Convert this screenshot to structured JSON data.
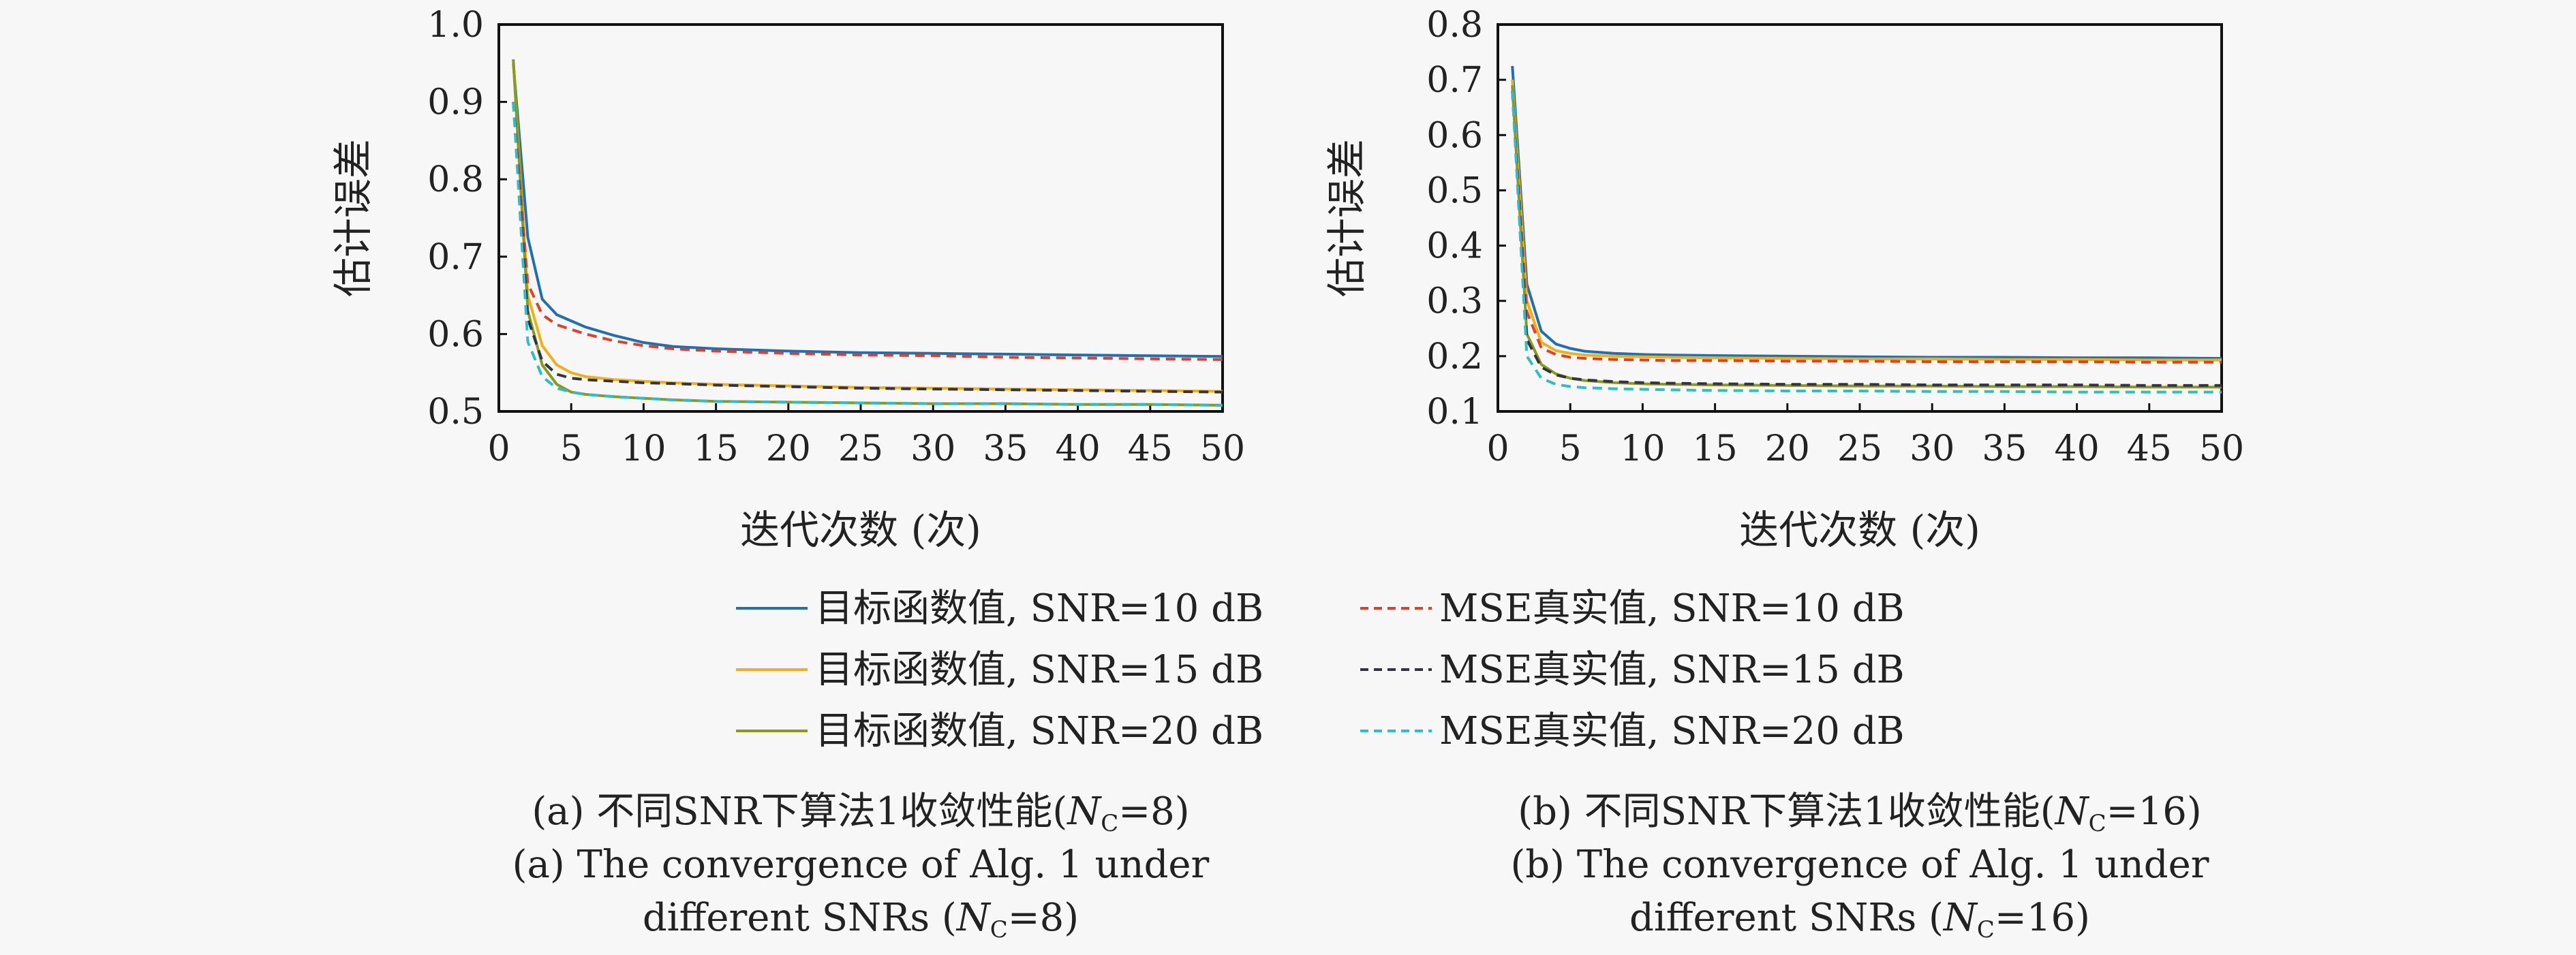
{
  "chart_data": [
    {
      "type": "line",
      "panel": "a",
      "xlabel": "迭代次数 (次)",
      "ylabel": "估计误差",
      "xlim": [
        0,
        50
      ],
      "ylim": [
        0.5,
        1.0
      ],
      "xticks": [
        0,
        5,
        10,
        15,
        20,
        25,
        30,
        35,
        40,
        45,
        50
      ],
      "yticks": [
        "0.5",
        "0.6",
        "0.7",
        "0.8",
        "0.9",
        "1.0"
      ],
      "grid": false,
      "x": [
        1,
        2,
        3,
        4,
        5,
        6,
        8,
        10,
        12,
        15,
        20,
        25,
        30,
        35,
        40,
        45,
        50
      ],
      "series": [
        {
          "name": "目标函数值, SNR=10 dB",
          "color": "#1f6fb4",
          "dash": "solid",
          "values": [
            0.95,
            0.725,
            0.645,
            0.625,
            0.617,
            0.609,
            0.598,
            0.589,
            0.584,
            0.581,
            0.578,
            0.576,
            0.575,
            0.574,
            0.573,
            0.572,
            0.571
          ]
        },
        {
          "name": "目标函数值, SNR=15 dB",
          "color": "#f2b017",
          "dash": "solid",
          "values": [
            0.955,
            0.65,
            0.585,
            0.56,
            0.55,
            0.545,
            0.541,
            0.539,
            0.537,
            0.535,
            0.533,
            0.531,
            0.53,
            0.529,
            0.528,
            0.527,
            0.526
          ]
        },
        {
          "name": "目标函数值, SNR=20 dB",
          "color": "#8a9a1b",
          "dash": "solid",
          "values": [
            0.955,
            0.63,
            0.56,
            0.535,
            0.525,
            0.522,
            0.519,
            0.517,
            0.515,
            0.513,
            0.512,
            0.511,
            0.51,
            0.51,
            0.509,
            0.509,
            0.508
          ]
        },
        {
          "name": "MSE真实值, SNR=10 dB",
          "color": "#e0402a",
          "dash": "dashed",
          "values": [
            0.9,
            0.665,
            0.625,
            0.612,
            0.606,
            0.6,
            0.591,
            0.585,
            0.581,
            0.578,
            0.575,
            0.573,
            0.572,
            0.57,
            0.569,
            0.568,
            0.567
          ]
        },
        {
          "name": "MSE真实值, SNR=15 dB",
          "color": "#333344",
          "dash": "dashed",
          "values": [
            0.9,
            0.62,
            0.565,
            0.548,
            0.543,
            0.541,
            0.539,
            0.537,
            0.536,
            0.534,
            0.532,
            0.53,
            0.529,
            0.528,
            0.527,
            0.526,
            0.525
          ]
        },
        {
          "name": "MSE真实值, SNR=20 dB",
          "color": "#2bbfc8",
          "dash": "dashed",
          "values": [
            0.9,
            0.59,
            0.545,
            0.53,
            0.525,
            0.522,
            0.519,
            0.517,
            0.515,
            0.513,
            0.512,
            0.511,
            0.51,
            0.51,
            0.509,
            0.509,
            0.508
          ]
        }
      ]
    },
    {
      "type": "line",
      "panel": "b",
      "xlabel": "迭代次数 (次)",
      "ylabel": "估计误差",
      "xlim": [
        0,
        50
      ],
      "ylim": [
        0.1,
        0.8
      ],
      "xticks": [
        0,
        5,
        10,
        15,
        20,
        25,
        30,
        35,
        40,
        45,
        50
      ],
      "yticks": [
        "0.1",
        "0.2",
        "0.3",
        "0.4",
        "0.5",
        "0.6",
        "0.7",
        "0.8"
      ],
      "grid": false,
      "x": [
        1,
        2,
        3,
        4,
        5,
        6,
        8,
        10,
        12,
        15,
        20,
        25,
        30,
        35,
        40,
        45,
        50
      ],
      "series": [
        {
          "name": "目标函数值, SNR=10 dB",
          "color": "#1f6fb4",
          "dash": "solid",
          "values": [
            0.725,
            0.33,
            0.245,
            0.222,
            0.214,
            0.209,
            0.205,
            0.203,
            0.202,
            0.201,
            0.2,
            0.199,
            0.198,
            0.198,
            0.197,
            0.197,
            0.196
          ]
        },
        {
          "name": "目标函数值, SNR=15 dB",
          "color": "#f2b017",
          "dash": "solid",
          "values": [
            0.7,
            0.3,
            0.225,
            0.21,
            0.205,
            0.202,
            0.2,
            0.199,
            0.198,
            0.197,
            0.196,
            0.195,
            0.195,
            0.194,
            0.194,
            0.193,
            0.193
          ]
        },
        {
          "name": "目标函数值, SNR=20 dB",
          "color": "#8a9a1b",
          "dash": "solid",
          "values": [
            0.69,
            0.24,
            0.185,
            0.168,
            0.16,
            0.156,
            0.152,
            0.15,
            0.149,
            0.148,
            0.147,
            0.146,
            0.146,
            0.145,
            0.145,
            0.144,
            0.144
          ]
        },
        {
          "name": "MSE真实值, SNR=10 dB",
          "color": "#e0402a",
          "dash": "dashed",
          "values": [
            0.68,
            0.28,
            0.215,
            0.203,
            0.198,
            0.196,
            0.194,
            0.193,
            0.192,
            0.192,
            0.191,
            0.191,
            0.19,
            0.19,
            0.19,
            0.189,
            0.189
          ]
        },
        {
          "name": "MSE真实值, SNR=15 dB",
          "color": "#333344",
          "dash": "dashed",
          "values": [
            0.68,
            0.23,
            0.18,
            0.166,
            0.16,
            0.157,
            0.154,
            0.152,
            0.151,
            0.15,
            0.149,
            0.149,
            0.148,
            0.148,
            0.148,
            0.147,
            0.147
          ]
        },
        {
          "name": "MSE真实值, SNR=20 dB",
          "color": "#2bbfc8",
          "dash": "dashed",
          "values": [
            0.68,
            0.2,
            0.16,
            0.149,
            0.145,
            0.143,
            0.141,
            0.14,
            0.139,
            0.138,
            0.137,
            0.137,
            0.136,
            0.136,
            0.135,
            0.135,
            0.135
          ]
        }
      ]
    }
  ],
  "legend": {
    "items": [
      {
        "label": "目标函数值, SNR=10 dB",
        "color": "#1f6fb4",
        "dash": "solid"
      },
      {
        "label": "MSE真实值, SNR=10 dB",
        "color": "#e0402a",
        "dash": "dashed"
      },
      {
        "label": "目标函数值, SNR=15 dB",
        "color": "#f2b017",
        "dash": "solid"
      },
      {
        "label": "MSE真实值, SNR=15 dB",
        "color": "#333344",
        "dash": "dashed"
      },
      {
        "label": "目标函数值, SNR=20 dB",
        "color": "#8a9a1b",
        "dash": "solid"
      },
      {
        "label": "MSE真实值, SNR=20 dB",
        "color": "#2bbfc8",
        "dash": "dashed"
      }
    ]
  },
  "captions": {
    "a": {
      "cn_prefix": "(a) 不同SNR下算法1收敛性能(",
      "en_line1": "(a) The convergence of Alg. 1 under",
      "en_line2_prefix": "different SNRs (",
      "var": "N",
      "sub": "C",
      "eq": "=8",
      "suffix": ")"
    },
    "b": {
      "cn_prefix": "(b) 不同SNR下算法1收敛性能(",
      "en_line1": "(b) The convergence of Alg. 1 under",
      "en_line2_prefix": "different SNRs (",
      "var": "N",
      "sub": "C",
      "eq": "=16",
      "suffix": ")"
    }
  }
}
